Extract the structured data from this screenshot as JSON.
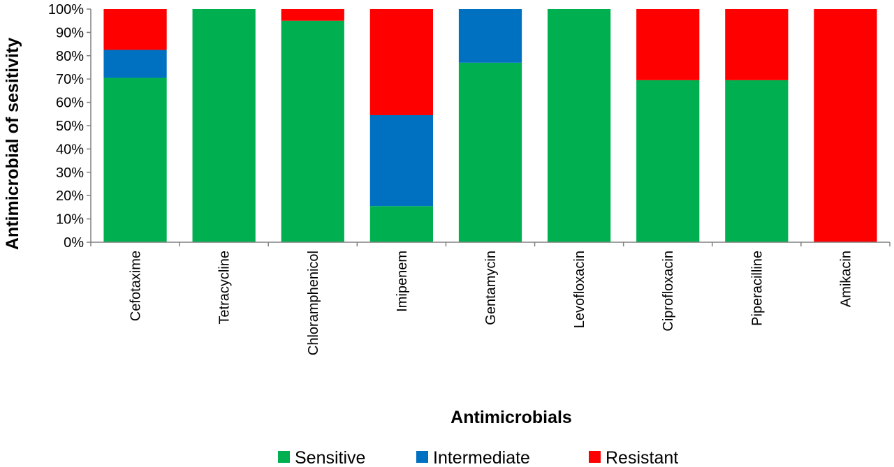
{
  "chart_data": {
    "type": "bar",
    "stacked": true,
    "percent": true,
    "categories": [
      "Cefotaxime",
      "Tetracycline",
      "Chloramphenicol",
      "Imipenem",
      "Gentamycin",
      "Levofloxacin",
      "Ciprofloxacin",
      "Piperacilline",
      "Amikacin"
    ],
    "series": [
      {
        "name": "Sensitive",
        "color": "#00b050",
        "values": [
          70.5,
          100,
          95,
          15.5,
          77,
          100,
          69.5,
          69.5,
          0
        ]
      },
      {
        "name": "Intermediate",
        "color": "#0070c0",
        "values": [
          12,
          0,
          0,
          39,
          23,
          0,
          0,
          0,
          0
        ]
      },
      {
        "name": "Resistant",
        "color": "#ff0000",
        "values": [
          17.5,
          0,
          5,
          45.5,
          0,
          0,
          30.5,
          30.5,
          100
        ]
      }
    ],
    "xlabel": "Antimicrobials",
    "ylabel": "Antimicrobial of sesitivity",
    "ylim": [
      0,
      100
    ],
    "yticks": [
      "0%",
      "10%",
      "20%",
      "30%",
      "40%",
      "50%",
      "60%",
      "70%",
      "80%",
      "90%",
      "100%"
    ],
    "grid": false,
    "legend_position": "bottom"
  }
}
